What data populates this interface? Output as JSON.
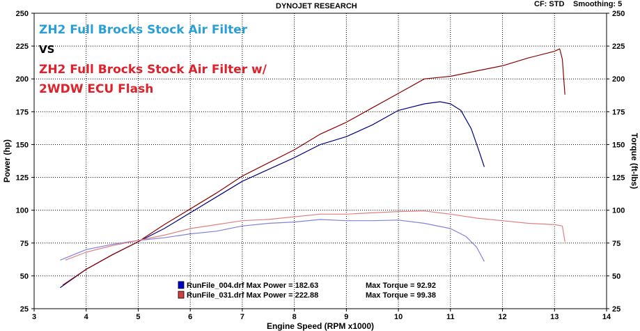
{
  "header": {
    "title": "DYNOJET RESEARCH",
    "cf": "CF: STD",
    "smoothing": "Smoothing: 5"
  },
  "annotations": {
    "line1": "ZH2 Full Brocks Stock Air Filter",
    "line2": "VS",
    "line3": "ZH2 Full Brocks Stock Air Filter w/",
    "line4": "2WDW ECU Flash",
    "color_blue": "#2a9fd6",
    "color_black": "#000000",
    "color_red": "#e0202a"
  },
  "legend": [
    {
      "file": "RunFile_004.drf",
      "max_power_label": "Max Power = 182.63",
      "max_torque_label": "Max Torque = 92.92",
      "color": "#0000cc"
    },
    {
      "file": "RunFile_031.drf",
      "max_power_label": "Max Power = 222.88",
      "max_torque_label": "Max Torque = 99.38",
      "color": "#d04040"
    }
  ],
  "chart_data": {
    "type": "line",
    "xlabel": "Engine Speed (RPM x1000)",
    "ylabel": "Power (hp)",
    "y2label": "Torque (ft-lbs)",
    "xlim": [
      3,
      14
    ],
    "ylim": [
      25,
      250
    ],
    "xticks": [
      3,
      4,
      5,
      6,
      7,
      8,
      9,
      10,
      11,
      12,
      13,
      14
    ],
    "yticks": [
      25,
      50,
      75,
      100,
      125,
      150,
      175,
      200,
      225,
      250
    ],
    "grid": true,
    "series": [
      {
        "name": "RunFile_004.drf Power",
        "color": "#000080",
        "x": [
          3.5,
          4.0,
          4.5,
          5.0,
          5.5,
          6.0,
          6.5,
          7.0,
          7.5,
          8.0,
          8.5,
          9.0,
          9.5,
          10.0,
          10.5,
          10.8,
          11.0,
          11.2,
          11.4,
          11.55,
          11.65
        ],
        "y": [
          41,
          55,
          66,
          76,
          86,
          98,
          110,
          122,
          131,
          140,
          150,
          156,
          165,
          176,
          181,
          182.6,
          181,
          176,
          162,
          145,
          133
        ]
      },
      {
        "name": "RunFile_031.drf Power",
        "color": "#8b0000",
        "x": [
          3.55,
          4.0,
          4.5,
          5.0,
          5.5,
          6.0,
          6.5,
          7.0,
          7.5,
          8.0,
          8.5,
          9.0,
          9.5,
          10.0,
          10.5,
          11.0,
          11.5,
          12.0,
          12.5,
          13.0,
          13.1,
          13.15,
          13.2
        ],
        "y": [
          43,
          55,
          66,
          76,
          89,
          101,
          113,
          126,
          136,
          146,
          158,
          167,
          178,
          189,
          200,
          202,
          206,
          210,
          216,
          221,
          222.9,
          215,
          188
        ]
      },
      {
        "name": "RunFile_004.drf Torque",
        "color": "#8080e0",
        "x": [
          3.5,
          4.0,
          4.5,
          5.0,
          5.5,
          6.0,
          6.5,
          7.0,
          7.5,
          8.0,
          8.5,
          9.0,
          9.5,
          10.0,
          10.5,
          11.0,
          11.3,
          11.5,
          11.65
        ],
        "y": [
          62,
          70,
          74,
          77,
          79,
          82,
          84,
          88,
          90,
          91,
          92.9,
          92,
          92,
          92.5,
          90,
          86,
          80,
          72,
          61
        ]
      },
      {
        "name": "RunFile_031.drf Torque",
        "color": "#e08080",
        "x": [
          3.6,
          4.0,
          4.5,
          5.0,
          5.5,
          6.0,
          6.5,
          7.0,
          7.5,
          8.0,
          8.5,
          9.0,
          9.5,
          10.0,
          10.5,
          11.0,
          11.5,
          12.0,
          12.5,
          13.0,
          13.15,
          13.2
        ],
        "y": [
          62,
          68,
          73,
          77,
          81,
          86,
          89,
          92,
          93,
          95,
          97,
          97,
          98,
          99,
          99.4,
          97,
          94,
          92,
          90,
          89,
          88,
          76
        ]
      }
    ]
  }
}
